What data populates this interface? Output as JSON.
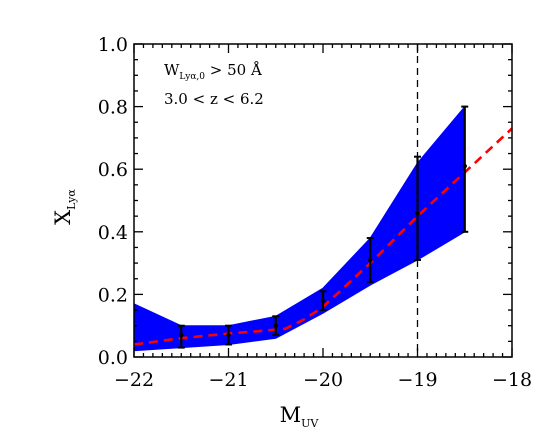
{
  "chart_data": {
    "type": "line",
    "xlim": [
      -22,
      -18
    ],
    "ylim": [
      0.0,
      1.0
    ],
    "xticks": [
      -22,
      -21,
      -20,
      -19,
      -18
    ],
    "yticks": [
      0.0,
      0.2,
      0.4,
      0.6,
      0.8,
      1.0
    ],
    "xtick_labels": [
      "−22",
      "−21",
      "−20",
      "−19",
      "−18"
    ],
    "ytick_labels": [
      "0.0",
      "0.2",
      "0.4",
      "0.6",
      "0.8",
      "1.0"
    ],
    "xlabel": {
      "main": "M",
      "sub": "UV"
    },
    "ylabel": {
      "main": "X",
      "sub": "Lyα"
    },
    "annotations": [
      {
        "main": "W",
        "sub": "Lyα,0",
        "rest": " > 50 Å"
      },
      {
        "text": "3.0 < z < 6.2"
      }
    ],
    "band": {
      "color": "#0000ff",
      "x": [
        -22.0,
        -21.5,
        -21.0,
        -20.5,
        -20.0,
        -19.5,
        -19.0,
        -18.5
      ],
      "lower": [
        0.02,
        0.03,
        0.04,
        0.06,
        0.14,
        0.23,
        0.31,
        0.4
      ],
      "upper": [
        0.17,
        0.1,
        0.1,
        0.13,
        0.22,
        0.38,
        0.62,
        0.8
      ]
    },
    "points": {
      "color": "#000000",
      "x": [
        -21.5,
        -21.0,
        -20.5,
        -20.0,
        -19.5,
        -19.0,
        -18.5
      ],
      "y": [
        0.07,
        0.07,
        0.1,
        0.18,
        0.31,
        0.46,
        0.61
      ],
      "lower": [
        0.03,
        0.04,
        0.07,
        0.15,
        0.24,
        0.31,
        0.4
      ],
      "upper": [
        0.1,
        0.1,
        0.13,
        0.21,
        0.38,
        0.64,
        0.8
      ]
    },
    "fit_curve": {
      "color": "#ff0000",
      "style": "dashed",
      "x": [
        -22.0,
        -21.5,
        -21.0,
        -20.7,
        -20.4,
        -20.2,
        -20.0,
        -19.5,
        -19.0,
        -18.5,
        -18.0
      ],
      "y": [
        0.04,
        0.06,
        0.075,
        0.082,
        0.09,
        0.12,
        0.16,
        0.3,
        0.45,
        0.59,
        0.73
      ]
    },
    "vline": {
      "x": -19.0,
      "color": "#000000",
      "style": "dashed"
    },
    "grid": false,
    "legend": "none"
  }
}
